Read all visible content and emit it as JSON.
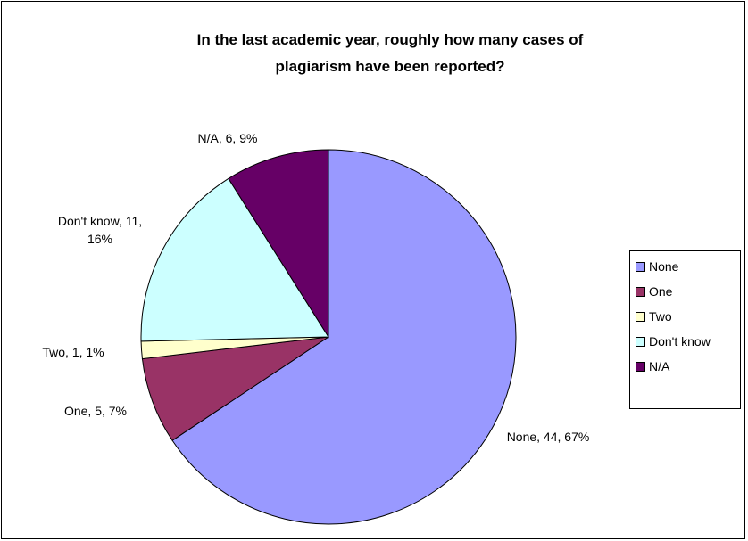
{
  "chart_data": {
    "type": "pie",
    "title_lines": [
      "In the last academic year, roughly how many cases of",
      "plagiarism have been reported?"
    ],
    "slices": [
      {
        "name": "None",
        "value": 44,
        "percent": "67%",
        "color": "#9999FF",
        "label_lines": [
          "None, 44, 67%"
        ]
      },
      {
        "name": "One",
        "value": 5,
        "percent": "7%",
        "color": "#993366",
        "label_lines": [
          "One, 5, 7%"
        ]
      },
      {
        "name": "Two",
        "value": 1,
        "percent": "1%",
        "color": "#FFFFCC",
        "label_lines": [
          "Two, 1, 1%"
        ]
      },
      {
        "name": "Don't know",
        "value": 11,
        "percent": "16%",
        "color": "#CCFFFF",
        "label_lines": [
          "Don't know, 11,",
          "16%"
        ]
      },
      {
        "name": "N/A",
        "value": 6,
        "percent": "9%",
        "color": "#660066",
        "label_lines": [
          "N/A, 6, 9%"
        ]
      }
    ],
    "legend": {
      "placement": "right",
      "items": [
        "None",
        "One",
        "Two",
        "Don't know",
        "N/A"
      ]
    }
  }
}
